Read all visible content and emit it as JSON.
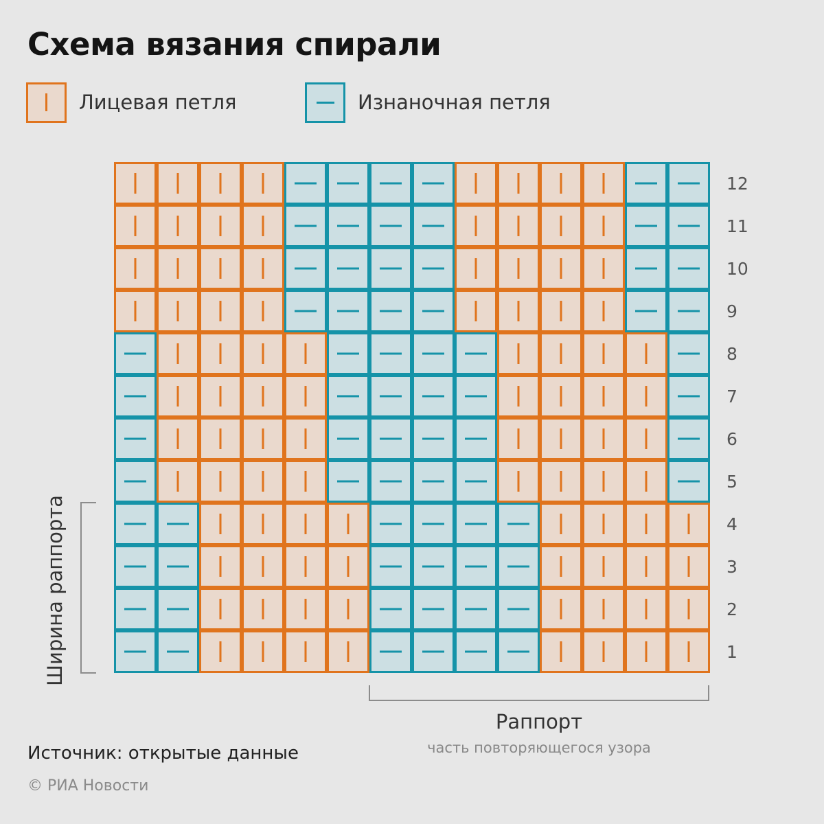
{
  "title": "Схема вязания спирали",
  "legend": {
    "knit": {
      "label": "Лицевая петля",
      "symbol": "vertical-bar-icon",
      "fill": "#ead9cd",
      "stroke": "#e0741d"
    },
    "purl": {
      "label": "Изнаночная петля",
      "symbol": "dash-icon",
      "fill": "#ccdfe3",
      "stroke": "#1593a8"
    }
  },
  "grid": {
    "columns": 14,
    "row_labels": [
      "12",
      "11",
      "10",
      "9",
      "8",
      "7",
      "6",
      "5",
      "4",
      "3",
      "2",
      "1"
    ],
    "rows": [
      "KKKKPPPPKKKKPP",
      "KKKKPPPPKKKKPP",
      "KKKKPPPPKKKKPP",
      "KKKKPPPPKKKKPP",
      "PKKKKPPPPKKKKP",
      "PKKKKPPPPKKKKP",
      "PKKKKPPPPKKKKP",
      "PKKKKPPPPKKKKP",
      "PPKKKKPPPPKKKK",
      "PPKKKKPPPPKKKK",
      "PPKKKKPPPPKKKK",
      "PPKKKKPPPPKKKK"
    ],
    "legend_key": {
      "K": "knit",
      "P": "purl"
    }
  },
  "rapport_width_label": "Ширина раппорта",
  "rapport": {
    "label": "Раппорт",
    "subtitle": "часть повторяющегося узора"
  },
  "source": "Источник: открытые данные",
  "copyright": "© РИА Новости"
}
